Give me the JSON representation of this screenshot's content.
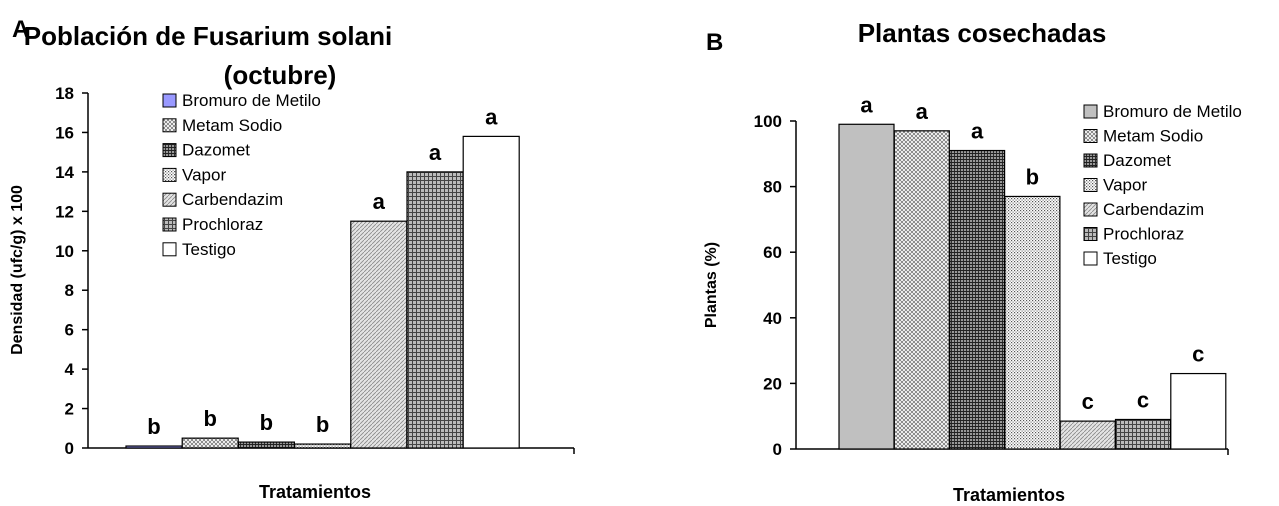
{
  "chart_data": [
    {
      "panel_label": "A",
      "type": "bar",
      "title": "Población de Fusarium solani",
      "subtitle": "(octubre)",
      "xlabel": "Tratamientos",
      "ylabel": "Densidad (ufc/g) x 100",
      "ylim": [
        0,
        18
      ],
      "yticks": [
        "0",
        "2",
        "4",
        "6",
        "8",
        "10",
        "12",
        "14",
        "16",
        "18"
      ],
      "grid": false,
      "legend_position": "top-left",
      "series": [
        {
          "name": "Bromuro de Metilo",
          "value": 0.1,
          "letter": "b",
          "pattern": "solid-blue"
        },
        {
          "name": "Metam Sodio",
          "value": 0.5,
          "letter": "b",
          "pattern": "crosshatch"
        },
        {
          "name": "Dazomet",
          "value": 0.3,
          "letter": "b",
          "pattern": "dense-grid"
        },
        {
          "name": "Vapor",
          "value": 0.2,
          "letter": "b",
          "pattern": "dots"
        },
        {
          "name": "Carbendazim",
          "value": 11.5,
          "letter": "a",
          "pattern": "diagonal"
        },
        {
          "name": "Prochloraz",
          "value": 14.0,
          "letter": "a",
          "pattern": "grid"
        },
        {
          "name": "Testigo",
          "value": 15.8,
          "letter": "a",
          "pattern": "white"
        }
      ]
    },
    {
      "panel_label": "B",
      "type": "bar",
      "title": "Plantas cosechadas",
      "xlabel": "Tratamientos",
      "ylabel": "Plantas  (%)",
      "ylim": [
        0,
        100
      ],
      "yticks": [
        "0",
        "20",
        "40",
        "60",
        "80",
        "100"
      ],
      "grid": false,
      "legend_position": "top-right",
      "series": [
        {
          "name": "Bromuro de Metilo",
          "value": 99,
          "letter": "a",
          "pattern": "solid-gray"
        },
        {
          "name": "Metam Sodio",
          "value": 97,
          "letter": "a",
          "pattern": "crosshatch"
        },
        {
          "name": "Dazomet",
          "value": 91,
          "letter": "a",
          "pattern": "dense-grid"
        },
        {
          "name": "Vapor",
          "value": 77,
          "letter": "b",
          "pattern": "dots"
        },
        {
          "name": "Carbendazim",
          "value": 8.5,
          "letter": "c",
          "pattern": "diagonal"
        },
        {
          "name": "Prochloraz",
          "value": 9,
          "letter": "c",
          "pattern": "grid"
        },
        {
          "name": "Testigo",
          "value": 23,
          "letter": "c",
          "pattern": "white"
        }
      ]
    }
  ]
}
